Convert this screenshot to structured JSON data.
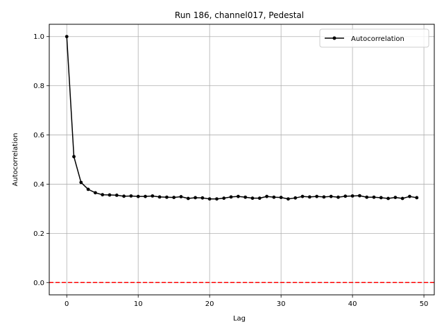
{
  "chart_data": {
    "type": "line",
    "title": "Run 186, channel017, Pedestal",
    "xlabel": "Lag",
    "ylabel": "Autocorrelation",
    "xlim": [
      -2.45,
      51.45
    ],
    "ylim": [
      -0.05,
      1.05
    ],
    "xticks": [
      0,
      10,
      20,
      30,
      40,
      50
    ],
    "yticks": [
      0.0,
      0.2,
      0.4,
      0.6,
      0.8,
      1.0
    ],
    "xtick_labels": [
      "0",
      "10",
      "20",
      "30",
      "40",
      "50"
    ],
    "ytick_labels": [
      "0.0",
      "0.2",
      "0.4",
      "0.6",
      "0.8",
      "1.0"
    ],
    "grid": true,
    "legend_position": "top-right",
    "series": [
      {
        "name": "Autocorrelation",
        "color": "#000000",
        "marker": "circle",
        "x": [
          0,
          1,
          2,
          3,
          4,
          5,
          6,
          7,
          8,
          9,
          10,
          11,
          12,
          13,
          14,
          15,
          16,
          17,
          18,
          19,
          20,
          21,
          22,
          23,
          24,
          25,
          26,
          27,
          28,
          29,
          30,
          31,
          32,
          33,
          34,
          35,
          36,
          37,
          38,
          39,
          40,
          41,
          42,
          43,
          44,
          45,
          46,
          47,
          48,
          49
        ],
        "y": [
          1.0,
          0.512,
          0.407,
          0.379,
          0.365,
          0.357,
          0.356,
          0.355,
          0.351,
          0.352,
          0.35,
          0.35,
          0.352,
          0.348,
          0.347,
          0.346,
          0.349,
          0.342,
          0.345,
          0.344,
          0.34,
          0.34,
          0.343,
          0.348,
          0.35,
          0.347,
          0.343,
          0.343,
          0.35,
          0.347,
          0.346,
          0.34,
          0.344,
          0.35,
          0.348,
          0.35,
          0.348,
          0.35,
          0.347,
          0.351,
          0.352,
          0.353,
          0.347,
          0.347,
          0.345,
          0.342,
          0.346,
          0.342,
          0.35,
          0.345
        ]
      }
    ],
    "reference_line": {
      "y": 0.0,
      "color": "#ff0000",
      "style": "dashed"
    }
  }
}
